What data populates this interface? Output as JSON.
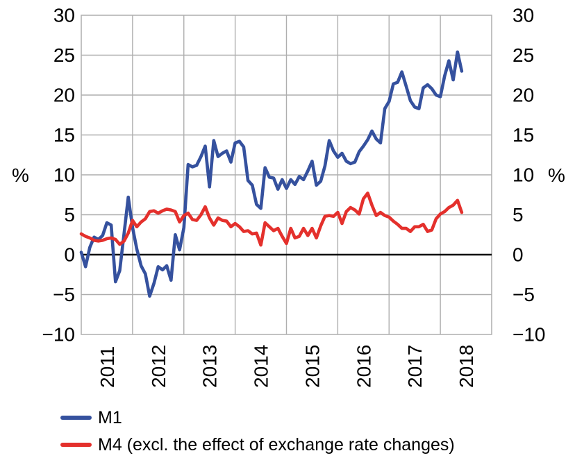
{
  "chart_data": {
    "type": "line",
    "frequency": "monthly",
    "x_start": "2011-01",
    "x_end": "2018-06",
    "x_year_labels": [
      "2011",
      "2012",
      "2013",
      "2014",
      "2015",
      "2016",
      "2017",
      "2018"
    ],
    "ylim": [
      -10,
      30
    ],
    "y_ticks": [
      30,
      25,
      20,
      15,
      10,
      5,
      0,
      -5,
      -10
    ],
    "ylabel_left": "%",
    "ylabel_right": "%",
    "grid": true,
    "zero_line_color": "#000000",
    "gridline_color": "#aeaeae",
    "legend_position": "bottom-left",
    "series": [
      {
        "name": "M1",
        "color": "#35519e",
        "values": [
          0.3,
          -1.5,
          0.9,
          2.2,
          1.9,
          2.4,
          4.0,
          3.7,
          -3.4,
          -2.0,
          2.6,
          7.2,
          3.4,
          0.7,
          -1.4,
          -2.4,
          -5.2,
          -3.6,
          -1.5,
          -1.9,
          -1.4,
          -3.2,
          2.5,
          0.6,
          3.4,
          11.3,
          11.0,
          11.2,
          12.3,
          13.6,
          8.5,
          14.3,
          12.3,
          12.7,
          13.0,
          11.6,
          14.0,
          14.2,
          13.5,
          9.3,
          8.7,
          6.3,
          5.8,
          10.9,
          9.7,
          9.6,
          8.2,
          9.4,
          8.3,
          9.4,
          8.8,
          9.8,
          9.4,
          10.5,
          11.7,
          8.7,
          9.2,
          11.1,
          14.3,
          13.0,
          12.2,
          12.7,
          11.7,
          11.4,
          11.6,
          12.9,
          13.6,
          14.4,
          15.5,
          14.5,
          14.0,
          18.3,
          19.2,
          21.4,
          21.6,
          22.9,
          21.1,
          19.3,
          18.5,
          18.3,
          20.9,
          21.3,
          20.8,
          20.0,
          19.8,
          22.4,
          24.3,
          21.9,
          25.4,
          23.0
        ]
      },
      {
        "name": "M4 (excl. the effect of exchange rate changes)",
        "color": "#e4302c",
        "values": [
          2.6,
          2.3,
          2.1,
          1.8,
          1.7,
          1.8,
          2.0,
          2.1,
          1.9,
          1.3,
          1.7,
          2.7,
          4.3,
          3.5,
          4.1,
          4.5,
          5.4,
          5.5,
          5.2,
          5.5,
          5.7,
          5.6,
          5.4,
          4.1,
          4.9,
          5.2,
          4.4,
          4.3,
          5.0,
          6.0,
          4.6,
          3.7,
          4.6,
          4.3,
          4.2,
          3.5,
          3.9,
          3.5,
          2.9,
          3.0,
          2.6,
          2.7,
          1.2,
          4.0,
          3.5,
          3.0,
          3.3,
          2.3,
          1.4,
          3.3,
          2.1,
          2.3,
          3.3,
          2.4,
          3.3,
          2.1,
          3.6,
          4.8,
          4.9,
          4.8,
          5.3,
          3.9,
          5.4,
          5.9,
          5.6,
          5.1,
          7.0,
          7.7,
          6.2,
          4.9,
          5.3,
          4.9,
          4.7,
          4.2,
          3.8,
          3.3,
          3.3,
          2.9,
          3.5,
          3.5,
          3.8,
          2.9,
          3.1,
          4.5,
          5.1,
          5.4,
          5.9,
          6.2,
          6.8,
          5.3
        ]
      }
    ]
  }
}
